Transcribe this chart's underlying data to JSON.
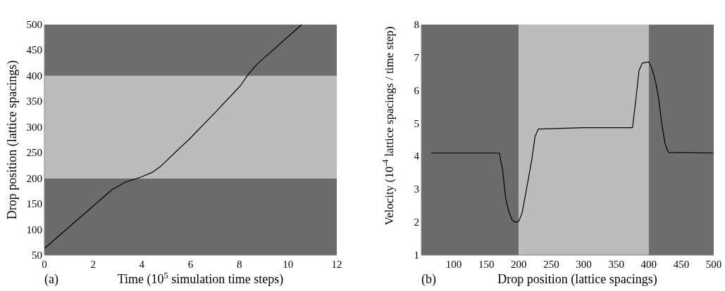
{
  "chart_data": [
    {
      "type": "line",
      "xlabel": "Time (10$^{5}$ simulation time steps)",
      "ylabel": "Drop position (lattice spacings)",
      "annotations": [
        "(a)"
      ],
      "xlim": [
        0,
        12
      ],
      "xticks": [
        0,
        2,
        4,
        6,
        8,
        10,
        12
      ],
      "ylim": [
        50,
        500
      ],
      "yticks": [
        50,
        100,
        150,
        200,
        250,
        300,
        350,
        400,
        450,
        500
      ],
      "bands": [
        {
          "axis": "y",
          "from": 50,
          "to": 200,
          "color": "#6b6b6b"
        },
        {
          "axis": "y",
          "from": 200,
          "to": 400,
          "color": "#bcbcbc"
        },
        {
          "axis": "y",
          "from": 400,
          "to": 500,
          "color": "#6e6e6e"
        }
      ],
      "series": [
        {
          "color": "#000000",
          "x": [
            0,
            2.78,
            3.3,
            3.93,
            4.4,
            4.79,
            5.4,
            5.94,
            7,
            8.05,
            8.34,
            8.71,
            10.56
          ],
          "values": [
            63,
            178,
            192,
            202,
            211,
            224,
            252,
            276,
            328,
            381,
            401,
            422,
            500
          ]
        }
      ]
    },
    {
      "type": "line",
      "xlabel": "Drop position (lattice spacings)",
      "ylabel": "Velocity (10$^{-4}$ lattice spacings / time step)",
      "annotations": [
        "(b)"
      ],
      "xlim": [
        50,
        500
      ],
      "xticks": [
        100,
        150,
        200,
        250,
        300,
        350,
        400,
        450,
        500
      ],
      "ylim": [
        1,
        8
      ],
      "yticks": [
        1,
        2,
        3,
        4,
        5,
        6,
        7,
        8
      ],
      "bands": [
        {
          "axis": "x",
          "from": 50,
          "to": 200,
          "color": "#6b6b6b"
        },
        {
          "axis": "x",
          "from": 200,
          "to": 400,
          "color": "#bcbcbc"
        },
        {
          "axis": "x",
          "from": 400,
          "to": 500,
          "color": "#6e6e6e"
        }
      ],
      "series": [
        {
          "color": "#000000",
          "x": [
            65,
            170,
            175,
            180,
            185,
            190,
            195,
            200,
            205,
            210,
            215,
            220,
            225,
            230,
            300,
            375,
            380,
            385,
            390,
            400,
            405,
            410,
            415,
            420,
            425,
            430,
            500
          ],
          "values": [
            4.1,
            4.1,
            3.6,
            2.7,
            2.3,
            2.06,
            2.0,
            2.03,
            2.28,
            2.8,
            3.35,
            3.9,
            4.6,
            4.83,
            4.87,
            4.87,
            5.7,
            6.6,
            6.83,
            6.87,
            6.67,
            6.3,
            5.8,
            5.0,
            4.4,
            4.12,
            4.1
          ]
        }
      ]
    }
  ]
}
